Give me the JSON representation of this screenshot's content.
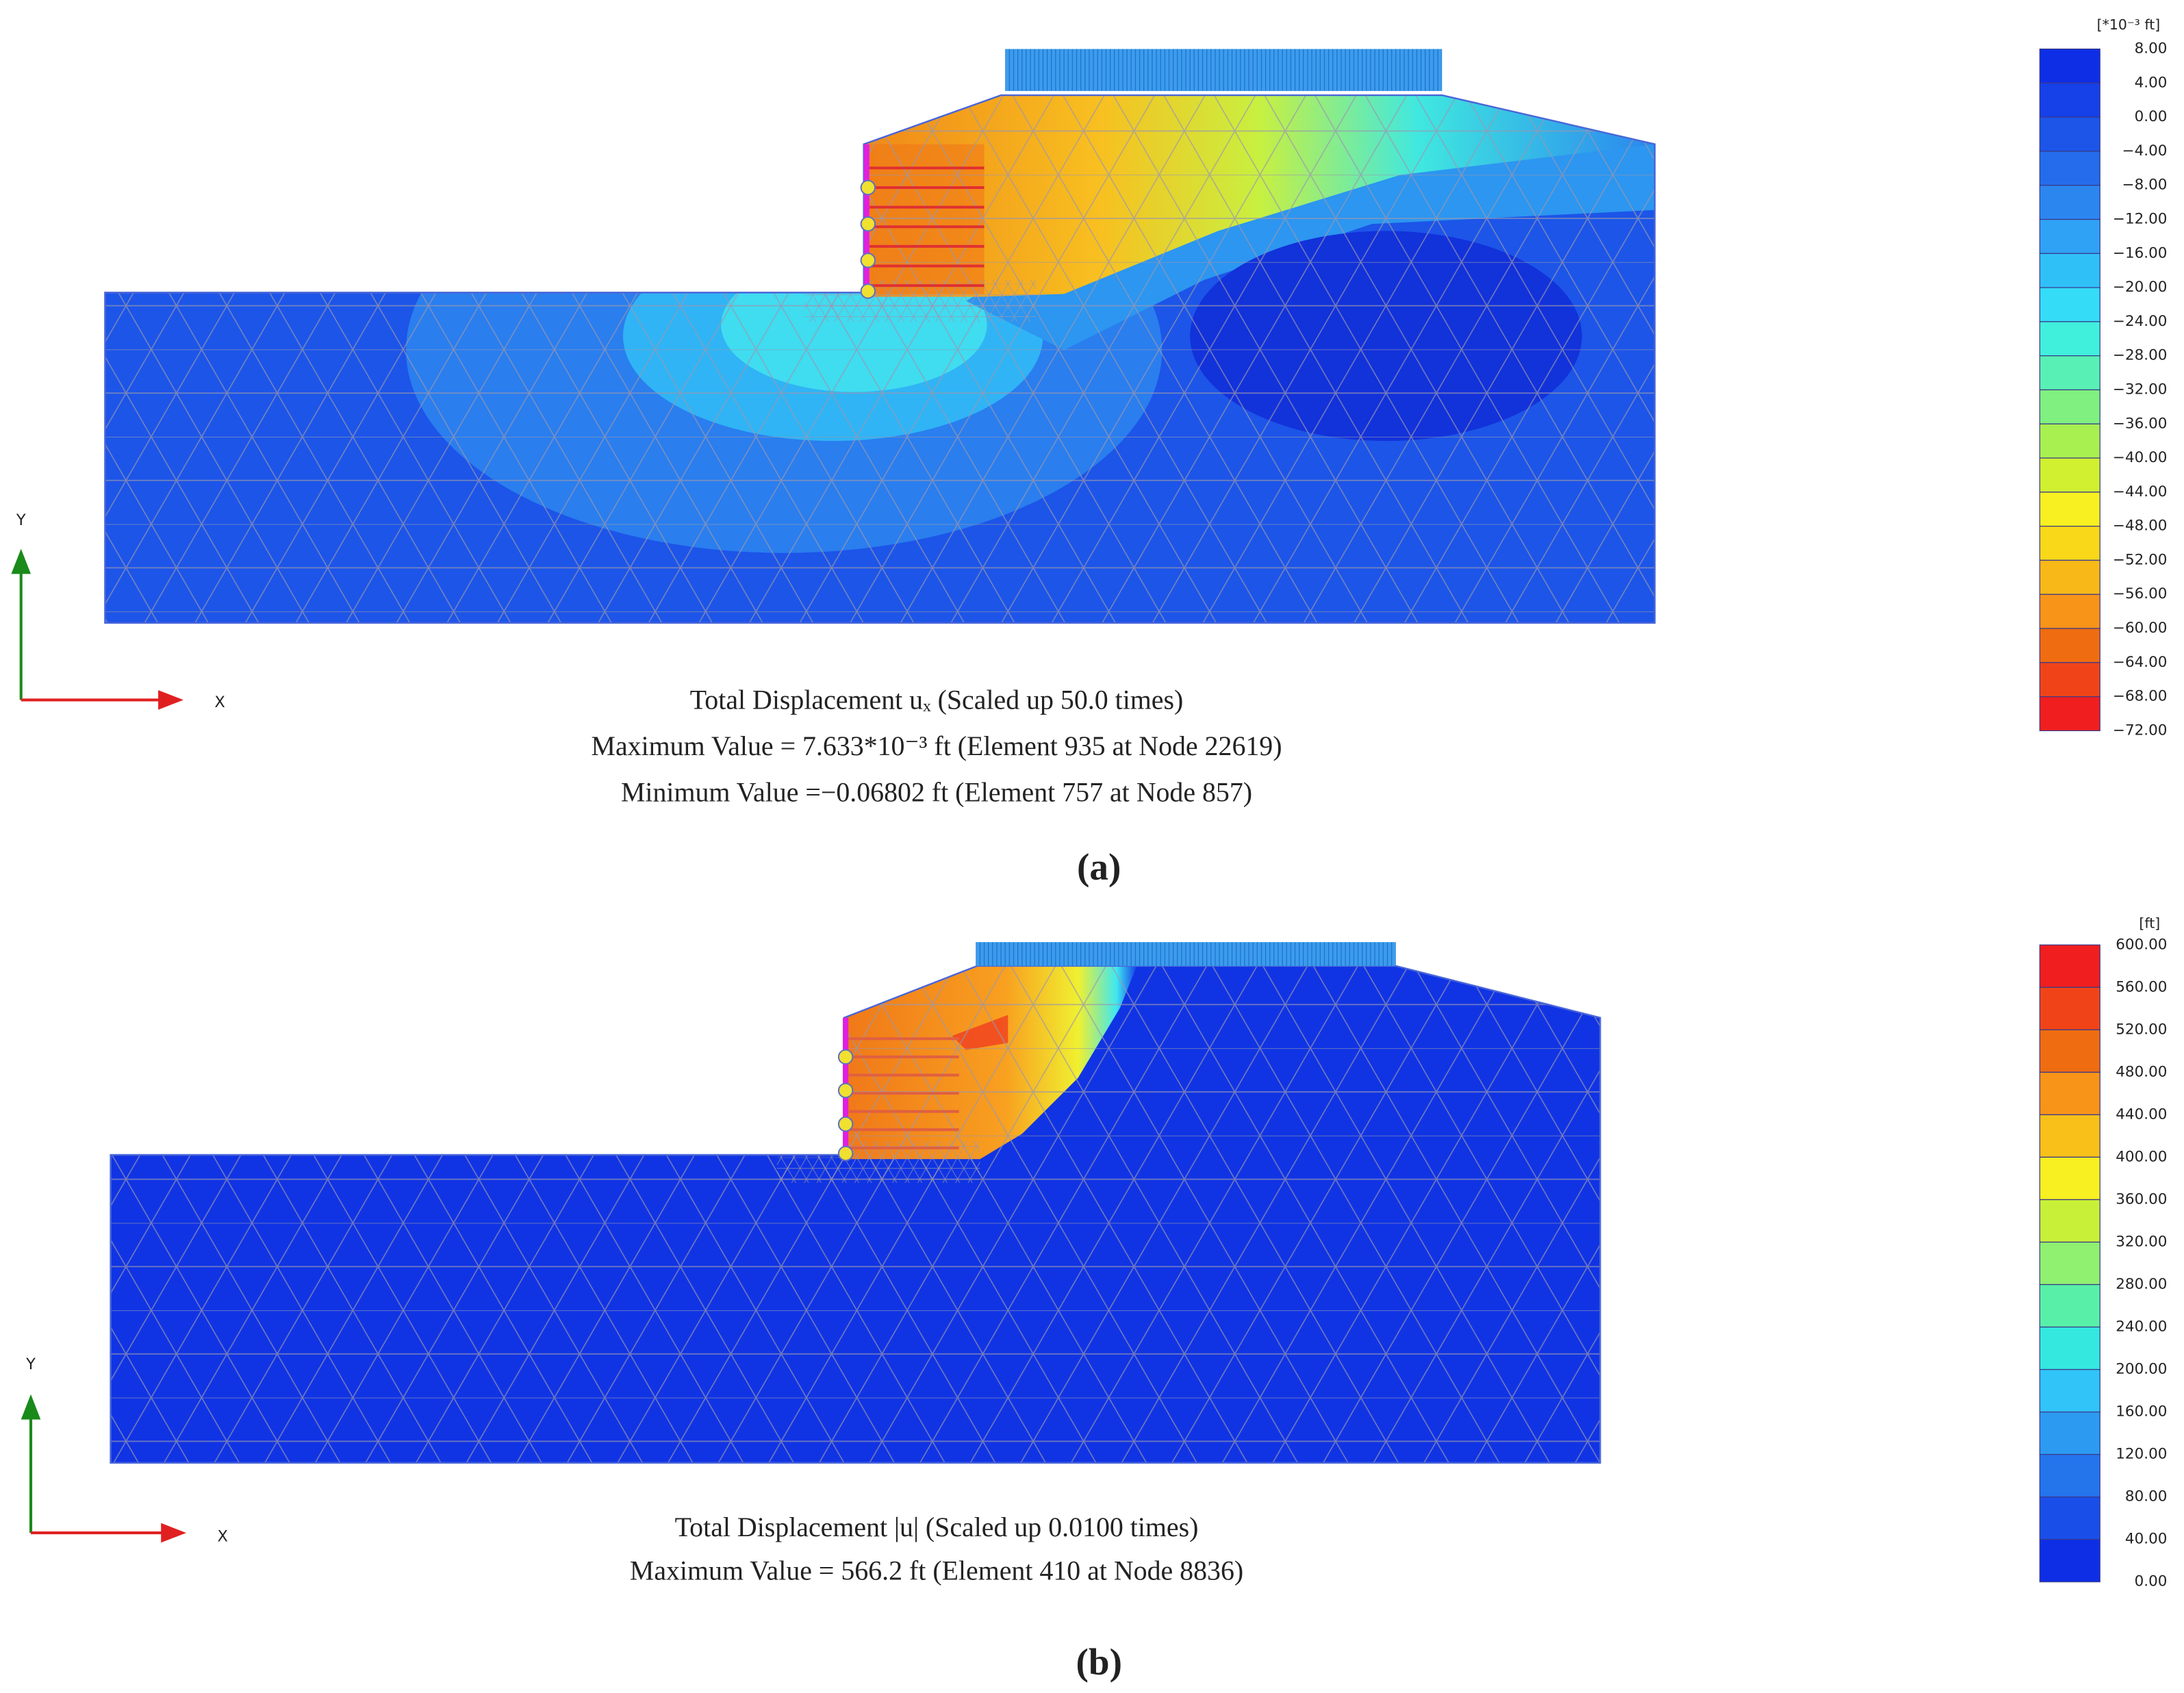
{
  "panels": [
    {
      "label": "(a)",
      "legend_unit": "[*10⁻³ ft]",
      "legend_ticks": [
        "8.00",
        "4.00",
        "0.00",
        "−4.00",
        "−8.00",
        "−12.00",
        "−16.00",
        "−20.00",
        "−24.00",
        "−28.00",
        "−32.00",
        "−36.00",
        "−40.00",
        "−44.00",
        "−48.00",
        "−52.00",
        "−56.00",
        "−60.00",
        "−64.00",
        "−68.00",
        "−72.00"
      ],
      "legend_colors": [
        "#0e2ee6",
        "#1640e8",
        "#1c55e8",
        "#246ceb",
        "#2c86f0",
        "#30a2f5",
        "#30c0f8",
        "#34dcf8",
        "#40f0dc",
        "#58f0b4",
        "#80f080",
        "#a8f050",
        "#d0f030",
        "#f8f020",
        "#f8d818",
        "#f8b818",
        "#f89418",
        "#f06c10",
        "#f04418",
        "#f01e1e"
      ],
      "axis_x": "X",
      "axis_y": "Y",
      "captions": [
        "Total Displacement uₓ (Scaled up 50.0 times)",
        "Maximum Value = 7.633*10⁻³ ft (Element 935 at Node 22619)",
        "Minimum Value =−0.06802 ft (Element 757 at Node 857)"
      ]
    },
    {
      "label": "(b)",
      "legend_unit": "[ft]",
      "legend_ticks": [
        "600.00",
        "560.00",
        "520.00",
        "480.00",
        "440.00",
        "400.00",
        "360.00",
        "320.00",
        "280.00",
        "240.00",
        "200.00",
        "160.00",
        "120.00",
        "80.00",
        "40.00",
        "0.00"
      ],
      "legend_colors": [
        "#f01e1e",
        "#f04418",
        "#f06c10",
        "#f89418",
        "#f8c018",
        "#f8f020",
        "#c8f038",
        "#90f070",
        "#58f0a8",
        "#34e8e0",
        "#30c4f8",
        "#2c9af0",
        "#2474ec",
        "#1a4ee8",
        "#0e2ee6"
      ],
      "axis_x": "X",
      "axis_y": "Y",
      "captions": [
        "Total Displacement |u| (Scaled up 0.0100 times)",
        "Maximum Value = 566.2 ft (Element 410 at Node 8836)"
      ]
    }
  ]
}
